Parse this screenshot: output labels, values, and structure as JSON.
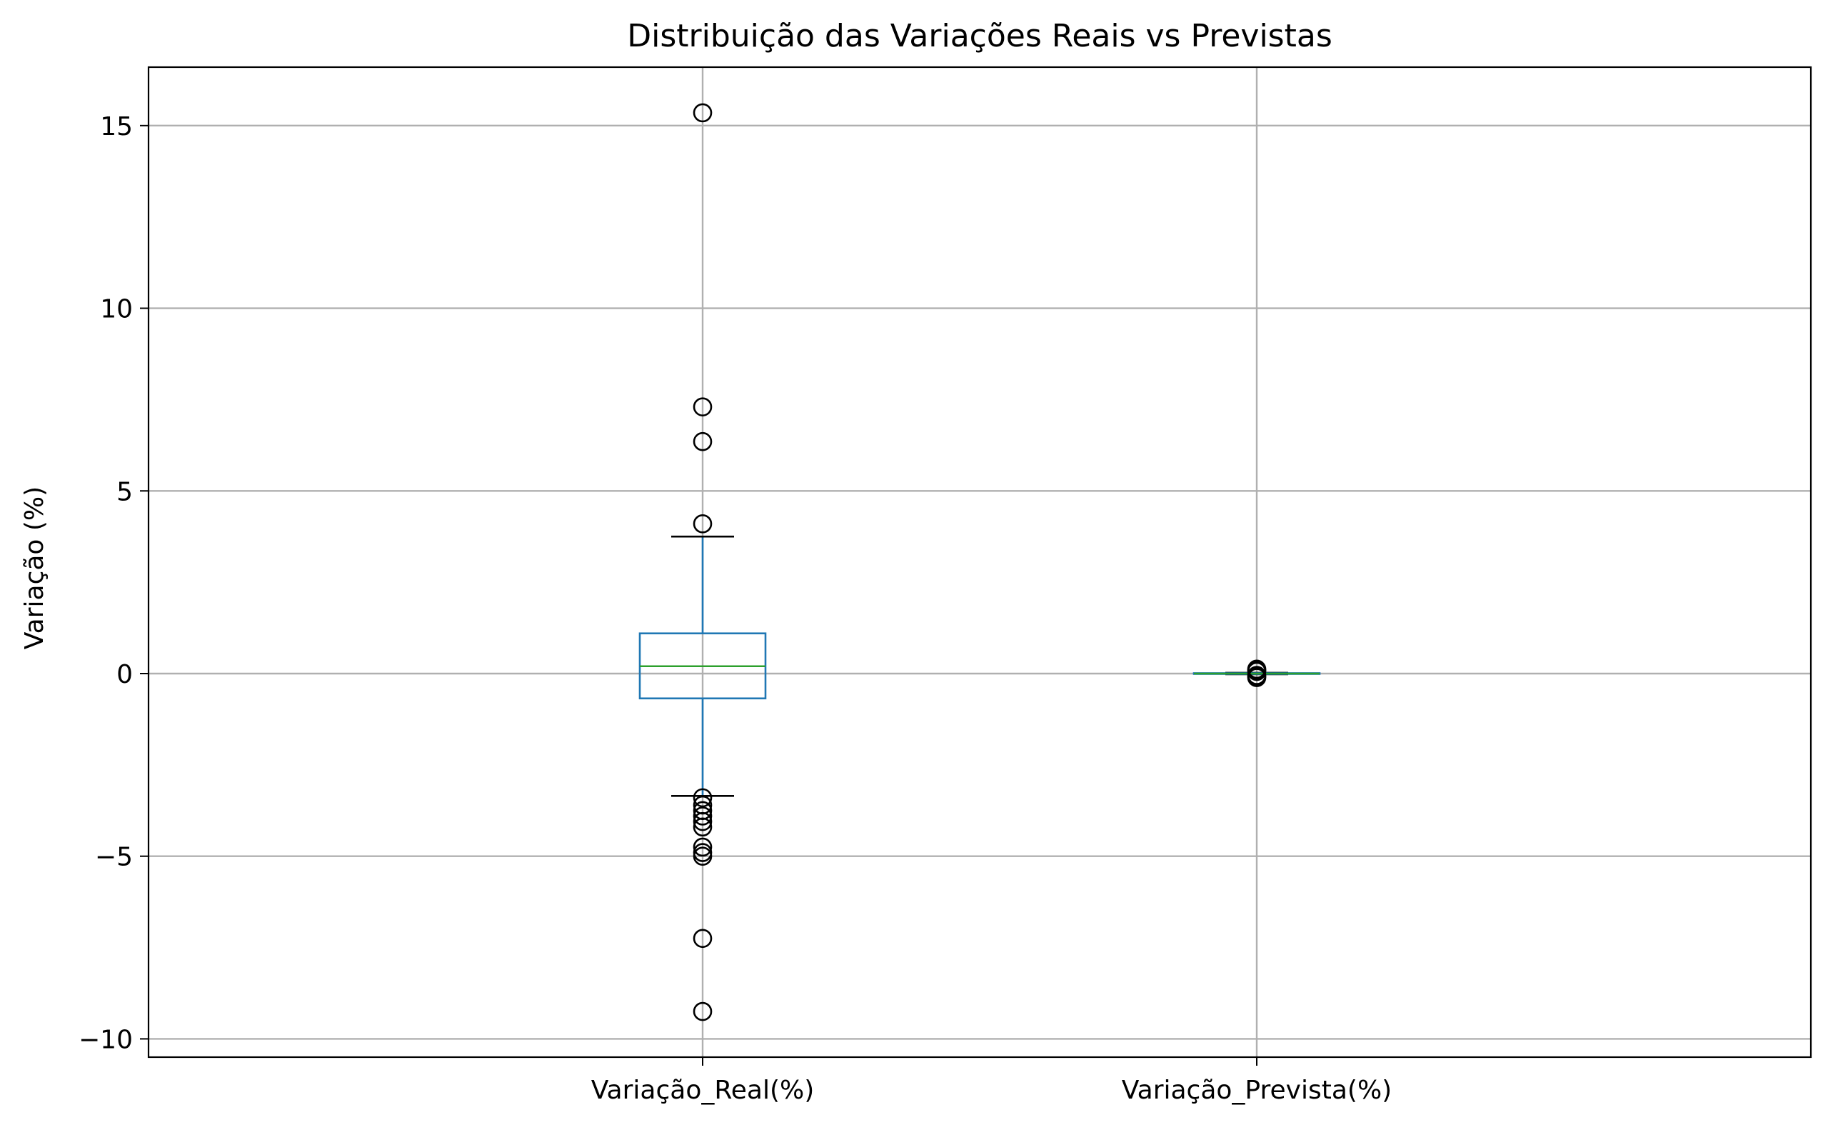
{
  "chart_data": {
    "type": "box",
    "title": "Distribuição das Variações Reais vs Previstas",
    "xlabel": "",
    "ylabel": "Variação (%)",
    "ylim": [
      -10.5,
      16.6
    ],
    "yticks": [
      15,
      10,
      5,
      0,
      -5,
      -10
    ],
    "ytick_labels": [
      "15",
      "10",
      "5",
      "0",
      "−5",
      "−10"
    ],
    "grid": true,
    "categories": [
      "Variação_Real(%)",
      "Variação_Prevista(%)"
    ],
    "colors": {
      "box": "#1f77b4",
      "median": "#2ca02c",
      "whisker": "#1f77b4",
      "cap": "#000000",
      "outlier": "#000000"
    },
    "series": [
      {
        "category": "Variação_Real(%)",
        "whisker_low": -3.35,
        "q1": -0.68,
        "median": 0.2,
        "q3": 1.1,
        "whisker_high": 3.75,
        "outliers": [
          15.35,
          7.3,
          6.35,
          4.1,
          -3.4,
          -3.6,
          -3.75,
          -3.9,
          -4.05,
          -4.2,
          -4.75,
          -4.9,
          -5.0,
          -7.25,
          -9.25
        ]
      },
      {
        "category": "Variação_Prevista(%)",
        "whisker_low": -0.02,
        "q1": -0.01,
        "median": 0.0,
        "q3": 0.01,
        "whisker_high": 0.02,
        "outliers": [
          0.12,
          0.09,
          0.06,
          -0.05,
          -0.08,
          -0.11
        ]
      }
    ]
  }
}
